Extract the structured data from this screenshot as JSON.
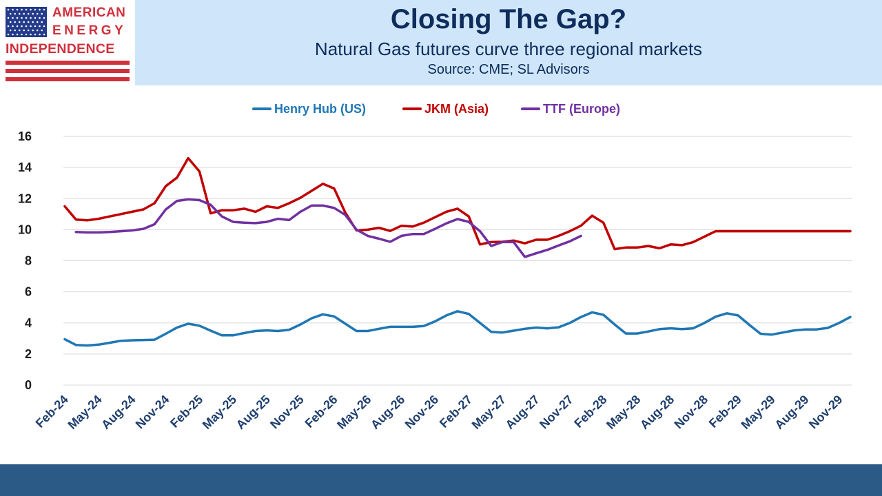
{
  "logo": {
    "line1": "AMERICAN",
    "line2": "ENERGY",
    "line3": "INDEPENDENCE",
    "brand_red": "#d0313d",
    "brand_blue": "#233b8a"
  },
  "header": {
    "title": "Closing The Gap?",
    "subtitle": "Natural Gas futures curve three regional markets",
    "source": "Source: CME; SL Advisors",
    "title_color": "#0f2d5c",
    "band_color": "#cfe6fa"
  },
  "footer": {
    "band_color": "#2c5a86"
  },
  "chart_data": {
    "type": "line",
    "title": "",
    "xlabel": "",
    "ylabel": "",
    "ylim": [
      0,
      16
    ],
    "yticks": [
      "0",
      "2",
      "4",
      "6",
      "8",
      "10",
      "12",
      "14",
      "16"
    ],
    "grid": true,
    "legend_position": "top-center",
    "x": [
      "Feb-24",
      "Mar-24",
      "Apr-24",
      "May-24",
      "Jun-24",
      "Jul-24",
      "Aug-24",
      "Sep-24",
      "Oct-24",
      "Nov-24",
      "Dec-24",
      "Jan-25",
      "Feb-25",
      "Mar-25",
      "Apr-25",
      "May-25",
      "Jun-25",
      "Jul-25",
      "Aug-25",
      "Sep-25",
      "Oct-25",
      "Nov-25",
      "Dec-25",
      "Jan-26",
      "Feb-26",
      "Mar-26",
      "Apr-26",
      "May-26",
      "Jun-26",
      "Jul-26",
      "Aug-26",
      "Sep-26",
      "Oct-26",
      "Nov-26",
      "Dec-26",
      "Jan-27",
      "Feb-27",
      "Mar-27",
      "Apr-27",
      "May-27",
      "Jun-27",
      "Jul-27",
      "Aug-27",
      "Sep-27",
      "Oct-27",
      "Nov-27",
      "Dec-27",
      "Jan-28",
      "Feb-28",
      "Mar-28",
      "Apr-28",
      "May-28",
      "Jun-28",
      "Jul-28",
      "Aug-28",
      "Sep-28",
      "Oct-28",
      "Nov-28",
      "Dec-28",
      "Jan-29",
      "Feb-29",
      "Mar-29",
      "Apr-29",
      "May-29",
      "Jun-29",
      "Jul-29",
      "Aug-29",
      "Sep-29",
      "Oct-29",
      "Nov-29",
      "Dec-29"
    ],
    "xtick_labels": [
      "Feb-24",
      "May-24",
      "Aug-24",
      "Nov-24",
      "Feb-25",
      "May-25",
      "Aug-25",
      "Nov-25",
      "Feb-26",
      "May-26",
      "Aug-26",
      "Nov-26",
      "Feb-27",
      "May-27",
      "Aug-27",
      "Nov-27",
      "Feb-28",
      "May-28",
      "Aug-28",
      "Nov-28",
      "Feb-29",
      "May-29",
      "Aug-29",
      "Nov-29"
    ],
    "series": [
      {
        "name": "Henry Hub (US)",
        "color": "#1f77b4",
        "values": [
          2.95,
          2.58,
          2.55,
          2.6,
          2.72,
          2.85,
          2.88,
          2.9,
          2.92,
          3.3,
          3.7,
          3.95,
          3.82,
          3.5,
          3.2,
          3.2,
          3.35,
          3.48,
          3.52,
          3.48,
          3.56,
          3.9,
          4.3,
          4.55,
          4.42,
          3.95,
          3.48,
          3.48,
          3.62,
          3.75,
          3.75,
          3.75,
          3.8,
          4.1,
          4.48,
          4.75,
          4.58,
          4.0,
          3.42,
          3.38,
          3.5,
          3.62,
          3.7,
          3.65,
          3.72,
          4.0,
          4.38,
          4.68,
          4.52,
          3.9,
          3.32,
          3.32,
          3.45,
          3.6,
          3.65,
          3.6,
          3.65,
          4.0,
          4.4,
          4.62,
          4.48,
          3.88,
          3.3,
          3.25,
          3.38,
          3.52,
          3.58,
          3.58,
          3.68,
          4.0,
          4.38
        ]
      },
      {
        "name": "JKM (Asia)",
        "color": "#c00000",
        "values": [
          11.5,
          10.65,
          10.6,
          10.7,
          10.85,
          11.0,
          11.15,
          11.3,
          11.7,
          12.8,
          13.35,
          14.6,
          13.75,
          11.05,
          11.25,
          11.25,
          11.35,
          11.15,
          11.5,
          11.4,
          11.7,
          12.05,
          12.5,
          12.95,
          12.65,
          11.1,
          9.95,
          10.0,
          10.12,
          9.92,
          10.25,
          10.2,
          10.45,
          10.8,
          11.15,
          11.35,
          10.85,
          9.05,
          9.2,
          9.22,
          9.3,
          9.12,
          9.35,
          9.35,
          9.6,
          9.9,
          10.25,
          10.9,
          10.45,
          8.75,
          8.85,
          8.85,
          8.95,
          8.8,
          9.05,
          9.0,
          9.2,
          9.55,
          9.9,
          9.9,
          9.9,
          9.9,
          9.9,
          9.9,
          9.9,
          9.9,
          9.9,
          9.9,
          9.9,
          9.9,
          9.9
        ]
      },
      {
        "name": "TTF (Europe)",
        "color": "#7030a0",
        "values": [
          null,
          9.85,
          9.82,
          9.82,
          9.85,
          9.9,
          9.95,
          10.05,
          10.35,
          11.3,
          11.85,
          11.95,
          11.9,
          11.6,
          10.85,
          10.5,
          10.45,
          10.42,
          10.5,
          10.7,
          10.62,
          11.15,
          11.55,
          11.55,
          11.4,
          10.95,
          10.0,
          9.6,
          9.42,
          9.22,
          9.6,
          9.72,
          9.72,
          10.05,
          10.4,
          10.68,
          10.5,
          9.9,
          8.95,
          9.2,
          9.2,
          8.25,
          8.48,
          8.7,
          8.98,
          9.25,
          9.6,
          null,
          null,
          null,
          null,
          null,
          null,
          null,
          null,
          null,
          null,
          null,
          null,
          null,
          null,
          null,
          null,
          null,
          null,
          null,
          null,
          null,
          null,
          null,
          null
        ]
      }
    ]
  }
}
